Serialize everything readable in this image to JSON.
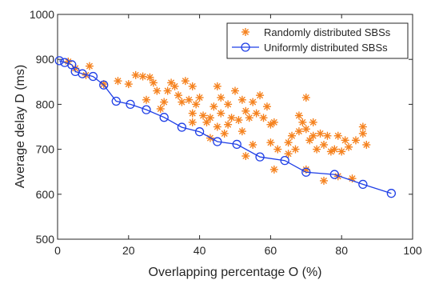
{
  "chart_data": {
    "type": "scatter",
    "xlabel": "Overlapping percentage  O (%)",
    "ylabel": "Average delay  D (ms)",
    "xlim": [
      0,
      100
    ],
    "ylim": [
      500,
      1000
    ],
    "x_ticks": [
      0,
      20,
      40,
      60,
      80,
      100
    ],
    "y_ticks": [
      500,
      600,
      700,
      800,
      900,
      1000
    ],
    "grid": false,
    "legend_position": "top-right",
    "series": [
      {
        "name": "Randomly distributed SBSs",
        "kind": "scatter",
        "marker": "asterisk",
        "color": "#F5821F",
        "points": [
          [
            3,
            895
          ],
          [
            5,
            880
          ],
          [
            9,
            885
          ],
          [
            8,
            865
          ],
          [
            13,
            845
          ],
          [
            17,
            852
          ],
          [
            20,
            845
          ],
          [
            22,
            865
          ],
          [
            24,
            862
          ],
          [
            26,
            860
          ],
          [
            27,
            848
          ],
          [
            28,
            830
          ],
          [
            25,
            810
          ],
          [
            29,
            790
          ],
          [
            30,
            805
          ],
          [
            31,
            830
          ],
          [
            32,
            848
          ],
          [
            33,
            840
          ],
          [
            34,
            820
          ],
          [
            35,
            805
          ],
          [
            36,
            852
          ],
          [
            37,
            810
          ],
          [
            38,
            840
          ],
          [
            38,
            780
          ],
          [
            39,
            800
          ],
          [
            40,
            815
          ],
          [
            41,
            775
          ],
          [
            42,
            760
          ],
          [
            43,
            770
          ],
          [
            44,
            795
          ],
          [
            45,
            840
          ],
          [
            46,
            815
          ],
          [
            46,
            780
          ],
          [
            48,
            800
          ],
          [
            48,
            755
          ],
          [
            49,
            770
          ],
          [
            50,
            830
          ],
          [
            51,
            765
          ],
          [
            52,
            810
          ],
          [
            53,
            785
          ],
          [
            54,
            770
          ],
          [
            55,
            805
          ],
          [
            56,
            780
          ],
          [
            57,
            820
          ],
          [
            58,
            770
          ],
          [
            59,
            795
          ],
          [
            60,
            755
          ],
          [
            61,
            760
          ],
          [
            38,
            760
          ],
          [
            43,
            725
          ],
          [
            45,
            750
          ],
          [
            47,
            735
          ],
          [
            52,
            740
          ],
          [
            53,
            685
          ],
          [
            55,
            710
          ],
          [
            60,
            715
          ],
          [
            61,
            655
          ],
          [
            62,
            700
          ],
          [
            65,
            715
          ],
          [
            66,
            730
          ],
          [
            67,
            700
          ],
          [
            68,
            775
          ],
          [
            69,
            760
          ],
          [
            70,
            815
          ],
          [
            70,
            745
          ],
          [
            71,
            720
          ],
          [
            72,
            730
          ],
          [
            73,
            700
          ],
          [
            74,
            735
          ],
          [
            75,
            710
          ],
          [
            76,
            730
          ],
          [
            77,
            695
          ],
          [
            79,
            730
          ],
          [
            80,
            695
          ],
          [
            81,
            720
          ],
          [
            82,
            705
          ],
          [
            84,
            720
          ],
          [
            86,
            750
          ],
          [
            86,
            735
          ],
          [
            87,
            710
          ],
          [
            70,
            655
          ],
          [
            75,
            630
          ],
          [
            79,
            640
          ],
          [
            83,
            635
          ],
          [
            65,
            690
          ],
          [
            68,
            740
          ],
          [
            72,
            760
          ],
          [
            78,
            700
          ]
        ]
      },
      {
        "name": "Uniformly distributed SBSs",
        "kind": "line",
        "marker": "circle",
        "color": "#1F3FE6",
        "points": [
          [
            0.5,
            897
          ],
          [
            2,
            893
          ],
          [
            4,
            888
          ],
          [
            5,
            873
          ],
          [
            7,
            868
          ],
          [
            10,
            862
          ],
          [
            13,
            843
          ],
          [
            16.5,
            807
          ],
          [
            20.5,
            800
          ],
          [
            25,
            788
          ],
          [
            30,
            771
          ],
          [
            35,
            749
          ],
          [
            40,
            739
          ],
          [
            45,
            717
          ],
          [
            50.5,
            711
          ],
          [
            57,
            683
          ],
          [
            64,
            675
          ],
          [
            70,
            649
          ],
          [
            78,
            644
          ],
          [
            86,
            622
          ],
          [
            94,
            602
          ]
        ]
      }
    ]
  }
}
